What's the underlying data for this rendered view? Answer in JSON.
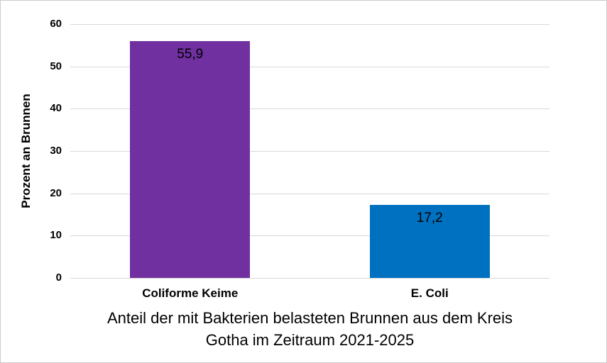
{
  "chart_data": {
    "type": "bar",
    "categories": [
      "Coliforme Keime",
      "E. Coli"
    ],
    "values": [
      55.9,
      17.2
    ],
    "value_labels": [
      "55,9",
      "17,2"
    ],
    "bar_colors": [
      "#7030A0",
      "#0070C0"
    ],
    "title_lines": [
      "Anteil der mit Bakterien belasteten Brunnen aus dem Kreis",
      "Gotha im Zeitraum 2021-2025"
    ],
    "title": "Anteil der mit Bakterien belasteten Brunnen aus dem Kreis Gotha im Zeitraum 2021-2025",
    "xlabel": "",
    "ylabel": "Prozent an Brunnen",
    "ylim": [
      0,
      60
    ],
    "ytick_interval": 10,
    "ytick_labels": [
      "0",
      "10",
      "20",
      "30",
      "40",
      "50",
      "60"
    ],
    "grid": true,
    "legend": false,
    "value_label_position": "inside-end"
  },
  "colors": {
    "gridline": "#d9d9d9",
    "border": "#cccccc",
    "background": "#ffffff",
    "text": "#000000"
  }
}
